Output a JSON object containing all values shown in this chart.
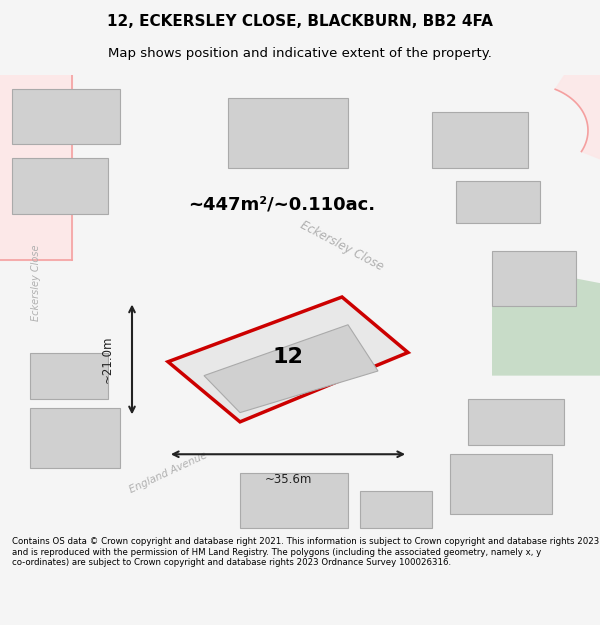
{
  "title_line1": "12, ECKERSLEY CLOSE, BLACKBURN, BB2 4FA",
  "title_line2": "Map shows position and indicative extent of the property.",
  "footer_text": "Contains OS data © Crown copyright and database right 2021. This information is subject to Crown copyright and database rights 2023 and is reproduced with the permission of HM Land Registry. The polygons (including the associated geometry, namely x, y co-ordinates) are subject to Crown copyright and database rights 2023 Ordnance Survey 100026316.",
  "area_label": "~447m²/~0.110ac.",
  "width_label": "~35.6m",
  "height_label": "~21.0m",
  "number_label": "12",
  "bg_color": "#f5f5f5",
  "map_bg": "#ffffff",
  "road_color": "#f4a0a0",
  "road_fill": "#fce8e8",
  "building_fill": "#d0d0d0",
  "building_edge": "#aaaaaa",
  "green_fill": "#c8dcc8",
  "plot_fill": "#e8e8e8",
  "plot_edge": "#cc0000",
  "dim_color": "#222222",
  "road_label_color": "#b0b0b0",
  "title_color": "#000000",
  "footer_color": "#000000"
}
